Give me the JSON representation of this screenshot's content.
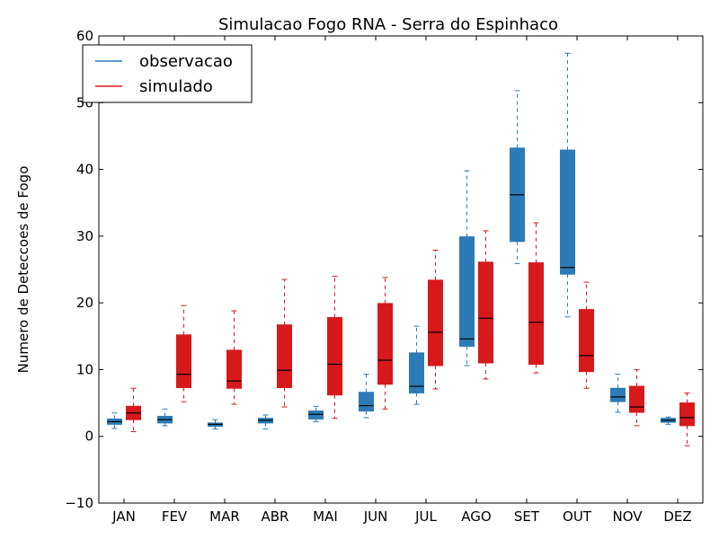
{
  "chart_data": {
    "type": "box",
    "title": "Simulacao Fogo RNA - Serra do Espinhaco",
    "xlabel": "",
    "ylabel": "Numero de Deteccoes de Fogo",
    "ylim": [
      -10,
      60
    ],
    "yticks": [
      -10,
      0,
      10,
      20,
      30,
      40,
      50,
      60
    ],
    "grid": false,
    "legend_position": "top-left",
    "categories": [
      "JAN",
      "FEV",
      "MAR",
      "ABR",
      "MAI",
      "JUN",
      "JUL",
      "AGO",
      "SET",
      "OUT",
      "NOV",
      "DEZ"
    ],
    "series": [
      {
        "name": "observacao",
        "color": "#2c7bb6",
        "boxes": [
          {
            "whislo": 1.2,
            "q1": 1.8,
            "med": 2.2,
            "q3": 2.6,
            "whishi": 3.5
          },
          {
            "whislo": 1.6,
            "q1": 2.0,
            "med": 2.5,
            "q3": 3.0,
            "whishi": 4.1
          },
          {
            "whislo": 1.1,
            "q1": 1.5,
            "med": 1.8,
            "q3": 2.0,
            "whishi": 2.5
          },
          {
            "whislo": 1.1,
            "q1": 2.0,
            "med": 2.4,
            "q3": 2.7,
            "whishi": 3.2
          },
          {
            "whislo": 2.2,
            "q1": 2.6,
            "med": 3.3,
            "q3": 3.8,
            "whishi": 4.5
          },
          {
            "whislo": 2.8,
            "q1": 3.8,
            "med": 4.6,
            "q3": 6.6,
            "whishi": 9.3
          },
          {
            "whislo": 4.8,
            "q1": 6.5,
            "med": 7.5,
            "q3": 12.5,
            "whishi": 16.5
          },
          {
            "whislo": 10.6,
            "q1": 13.5,
            "med": 14.6,
            "q3": 29.9,
            "whishi": 39.8
          },
          {
            "whislo": 25.9,
            "q1": 29.2,
            "med": 36.2,
            "q3": 43.2,
            "whishi": 51.8
          },
          {
            "whislo": 17.9,
            "q1": 24.3,
            "med": 25.3,
            "q3": 42.9,
            "whishi": 57.4
          },
          {
            "whislo": 3.6,
            "q1": 5.2,
            "med": 5.9,
            "q3": 7.2,
            "whishi": 9.3
          },
          {
            "whislo": 1.8,
            "q1": 2.1,
            "med": 2.4,
            "q3": 2.7,
            "whishi": 2.9
          }
        ]
      },
      {
        "name": "simulado",
        "color": "#d7191c",
        "boxes": [
          {
            "whislo": 0.7,
            "q1": 2.5,
            "med": 3.5,
            "q3": 4.5,
            "whishi": 7.2
          },
          {
            "whislo": 5.2,
            "q1": 7.3,
            "med": 9.3,
            "q3": 15.2,
            "whishi": 19.6
          },
          {
            "whislo": 4.8,
            "q1": 7.2,
            "med": 8.3,
            "q3": 12.9,
            "whishi": 18.8
          },
          {
            "whislo": 4.4,
            "q1": 7.3,
            "med": 9.9,
            "q3": 16.7,
            "whishi": 23.5
          },
          {
            "whislo": 2.7,
            "q1": 6.2,
            "med": 10.8,
            "q3": 17.8,
            "whishi": 24.0
          },
          {
            "whislo": 4.1,
            "q1": 7.8,
            "med": 11.4,
            "q3": 19.9,
            "whishi": 23.8
          },
          {
            "whislo": 7.1,
            "q1": 10.6,
            "med": 15.6,
            "q3": 23.4,
            "whishi": 27.9
          },
          {
            "whislo": 8.6,
            "q1": 11.0,
            "med": 17.7,
            "q3": 26.1,
            "whishi": 30.8
          },
          {
            "whislo": 9.5,
            "q1": 10.8,
            "med": 17.1,
            "q3": 26.0,
            "whishi": 32.0
          },
          {
            "whislo": 7.2,
            "q1": 9.7,
            "med": 12.1,
            "q3": 19.0,
            "whishi": 23.1
          },
          {
            "whislo": 1.6,
            "q1": 3.6,
            "med": 4.4,
            "q3": 7.5,
            "whishi": 10.0
          },
          {
            "whislo": -1.4,
            "q1": 1.6,
            "med": 2.8,
            "q3": 5.0,
            "whishi": 6.5
          }
        ]
      }
    ]
  }
}
